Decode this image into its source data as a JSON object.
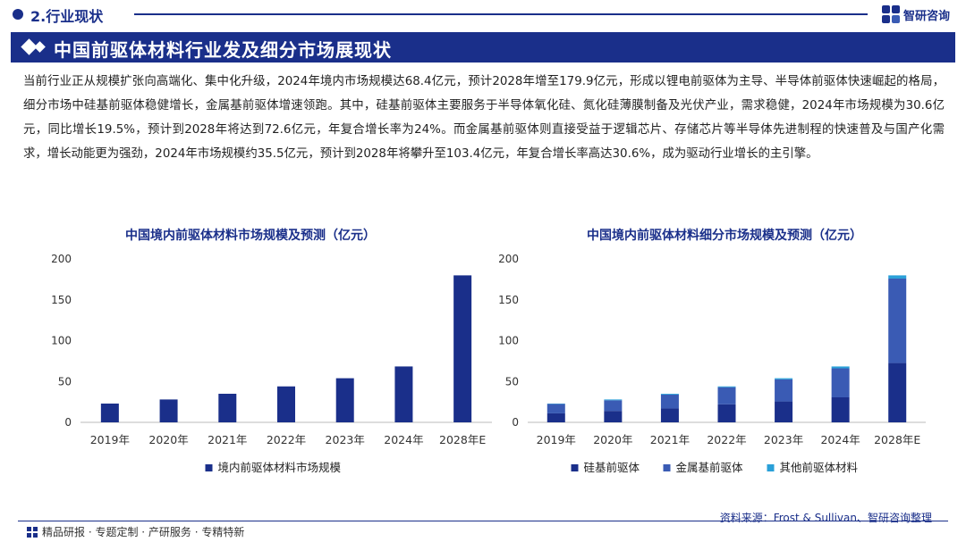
{
  "header": {
    "section_title": "2.行业现状",
    "logo_text": "智研咨询",
    "banner_title": "中国前驱体材料行业发及细分市场展现状"
  },
  "body_text": "当前行业正从规模扩张向高端化、集中化升级，2024年境内市场规模达68.4亿元，预计2028年增至179.9亿元，形成以锂电前驱体为主导、半导体前驱体快速崛起的格局，细分市场中硅基前驱体稳健增长，金属基前驱体增速领跑。其中，硅基前驱体主要服务于半导体氧化硅、氮化硅薄膜制备及光伏产业，需求稳健，2024年市场规模为30.6亿元，同比增长19.5%，预计到2028年将达到72.6亿元，年复合增长率为24%。而金属基前驱体则直接受益于逻辑芯片、存储芯片等半导体先进制程的快速普及与国产化需求，增长动能更为强劲，2024年市场规模约35.5亿元，预计到2028年将攀升至103.4亿元，年复合增长率高达30.6%，成为驱动行业增长的主引擎。",
  "chart_data": [
    {
      "type": "bar",
      "title": "中国境内前驱体材料市场规模及预测（亿元）",
      "categories": [
        "2019年",
        "2020年",
        "2021年",
        "2022年",
        "2023年",
        "2024年",
        "2028年E"
      ],
      "series": [
        {
          "name": "境内前驱体材料市场规模",
          "values": [
            23,
            28,
            35,
            44,
            54,
            68.4,
            179.9
          ],
          "color": "#1a2f8a"
        }
      ],
      "ylim": [
        0,
        200
      ],
      "yticks": [
        0,
        50,
        100,
        150,
        200
      ],
      "grid": false,
      "legend": "bottom"
    },
    {
      "type": "bar",
      "stacked": true,
      "title": "中国境内前驱体材料细分市场规模及预测（亿元）",
      "categories": [
        "2019年",
        "2020年",
        "2021年",
        "2022年",
        "2023年",
        "2024年",
        "2028年E"
      ],
      "series": [
        {
          "name": "硅基前驱体",
          "values": [
            11,
            14,
            17,
            22,
            25.6,
            30.6,
            72.6
          ],
          "color": "#1a2f8a"
        },
        {
          "name": "金属基前驱体",
          "values": [
            11.5,
            13,
            17,
            21,
            27,
            35.5,
            103.4
          ],
          "color": "#3a5bb4"
        },
        {
          "name": "其他前驱体材料",
          "values": [
            0.5,
            1,
            1,
            1,
            1.4,
            2.3,
            3.9
          ],
          "color": "#2aa0d8"
        }
      ],
      "ylim": [
        0,
        200
      ],
      "yticks": [
        0,
        50,
        100,
        150,
        200
      ],
      "grid": false,
      "legend": "bottom"
    }
  ],
  "footer": {
    "left_text": "精品研报 · 专题定制 · 产研服务 · 专精特新",
    "source": "资料来源：Frost & Sullivan、智研咨询整理"
  }
}
